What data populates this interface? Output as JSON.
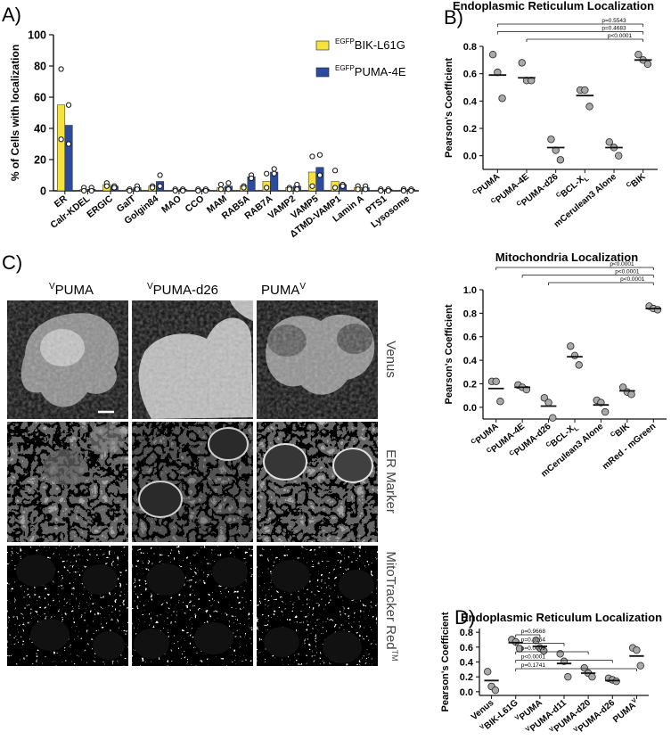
{
  "panel_letters": {
    "a": "A)",
    "b": "B)",
    "c": "C)",
    "d": "D)"
  },
  "chart_data": [
    {
      "id": "A",
      "type": "bar",
      "ylabel": "% of Cells with localization",
      "ylim": [
        0,
        100
      ],
      "yticks": [
        0,
        20,
        40,
        60,
        80,
        100
      ],
      "categories": [
        "ER",
        "Calr-KDEL",
        "ERGIC",
        "GalT",
        "Golgin84",
        "MAO",
        "CCO",
        "MAM",
        "RAB5A",
        "RAB7A",
        "VAMP2",
        "VAMP5",
        "ΔTMD-VAMP1",
        "Lamin A",
        "PTS1",
        "Lysosome"
      ],
      "legend_placement": "top-right",
      "series": [
        {
          "name": "BIK-L61G",
          "name_sup": "EGFP",
          "color": "#f5e23a",
          "values": [
            55,
            1,
            4,
            1,
            3,
            0.5,
            0.5,
            2,
            3,
            6,
            2,
            12,
            6,
            2,
            0.5,
            0.5
          ],
          "points": [
            [
              78,
              33
            ],
            [
              2,
              0
            ],
            [
              5,
              3
            ],
            [
              1,
              0
            ],
            [
              3,
              2
            ],
            [
              1,
              0
            ],
            [
              1,
              0
            ],
            [
              4,
              1
            ],
            [
              3,
              2
            ],
            [
              11,
              2
            ],
            [
              2,
              1
            ],
            [
              22,
              3
            ],
            [
              13,
              2
            ],
            [
              3,
              1
            ],
            [
              1,
              0
            ],
            [
              1,
              0
            ]
          ]
        },
        {
          "name": "PUMA-4E",
          "name_sup": "EGFP",
          "color": "#2c4aa0",
          "values": [
            42,
            1,
            3,
            2,
            6,
            1,
            1,
            3,
            9,
            12,
            3,
            15,
            4,
            2,
            1,
            1
          ],
          "points": [
            [
              55,
              30
            ],
            [
              2,
              0
            ],
            [
              3,
              2
            ],
            [
              3,
              1
            ],
            [
              10,
              3
            ],
            [
              1,
              0
            ],
            [
              1,
              0
            ],
            [
              5,
              1
            ],
            [
              10,
              8
            ],
            [
              14,
              11
            ],
            [
              4,
              1
            ],
            [
              23,
              10
            ],
            [
              4,
              3
            ],
            [
              3,
              1
            ],
            [
              1,
              0
            ],
            [
              1,
              0
            ]
          ]
        }
      ]
    },
    {
      "id": "B",
      "type": "scatter",
      "title": "Endoplasmic Reticulum Localization",
      "ylabel": "Pearson's Coefficient",
      "ylim": [
        -0.1,
        0.8
      ],
      "yticks": [
        0.0,
        0.2,
        0.4,
        0.6,
        0.8
      ],
      "categories": [
        {
          "sup": "C",
          "label": "PUMA"
        },
        {
          "sup": "C",
          "label": "PUMA-4E"
        },
        {
          "sup": "C",
          "label": "PUMA-d26"
        },
        {
          "sup": "C",
          "label": "BCL-X",
          "sub": "L"
        },
        {
          "sup": "",
          "label": "mCerulean3 Alone"
        },
        {
          "sup": "C",
          "label": "BIK"
        }
      ],
      "means": [
        0.59,
        0.57,
        0.06,
        0.44,
        0.06,
        0.7
      ],
      "points": [
        [
          0.74,
          0.61,
          0.42
        ],
        [
          0.68,
          0.55,
          0.55
        ],
        [
          0.12,
          0.04,
          -0.03
        ],
        [
          0.48,
          0.48,
          0.36
        ],
        [
          0.1,
          0.06,
          0.0
        ],
        [
          0.74,
          0.7,
          0.67
        ]
      ],
      "comparisons": [
        {
          "from": 1,
          "to": 5,
          "label": "p<0.0001"
        },
        {
          "from": 0,
          "to": 5,
          "label": "p=0.4683"
        },
        {
          "from": 0,
          "to": 5,
          "label": "p=0.5543"
        }
      ]
    },
    {
      "id": "C",
      "type": "scatter",
      "title": "Mitochondria Localization",
      "ylabel": "Pearson's Coefficient",
      "ylim": [
        -0.1,
        1.0
      ],
      "yticks": [
        0.0,
        0.2,
        0.4,
        0.6,
        0.8,
        1.0
      ],
      "categories": [
        {
          "sup": "C",
          "label": "PUMA"
        },
        {
          "sup": "C",
          "label": "PUMA-4E"
        },
        {
          "sup": "C",
          "label": "PUMA-d26"
        },
        {
          "sup": "C",
          "label": "BCL-X",
          "sub": "L"
        },
        {
          "sup": "",
          "label": "mCerulean3 Alone"
        },
        {
          "sup": "C",
          "label": "BIK"
        },
        {
          "sup": "",
          "label": "mRed - mGreen"
        }
      ],
      "means": [
        0.16,
        0.17,
        0.01,
        0.43,
        0.02,
        0.14,
        0.84
      ],
      "points": [
        [
          0.22,
          0.22,
          0.05
        ],
        [
          0.19,
          0.17,
          0.15
        ],
        [
          0.08,
          0.04,
          -0.09
        ],
        [
          0.52,
          0.44,
          0.36
        ],
        [
          0.06,
          0.04,
          -0.04
        ],
        [
          0.17,
          0.13,
          0.11
        ],
        [
          0.86,
          0.84,
          0.83
        ]
      ],
      "comparisons": [
        {
          "from": 2,
          "to": 6,
          "label": "p<0.0001"
        },
        {
          "from": 1,
          "to": 6,
          "label": "p<0.0001"
        },
        {
          "from": 0,
          "to": 6,
          "label": "p<0.0001"
        }
      ]
    },
    {
      "id": "D",
      "type": "scatter",
      "title": "Endoplasmic Reticulum Localization",
      "ylabel": "Pearson's Coefficient",
      "ylim": [
        -0.05,
        0.85
      ],
      "yticks": [
        0.0,
        0.2,
        0.4,
        0.6,
        0.8
      ],
      "categories": [
        {
          "sup": "",
          "label": "Venus"
        },
        {
          "sup": "V",
          "label": "BIK-L61G"
        },
        {
          "sup": "V",
          "label": "PUMA"
        },
        {
          "sup": "V",
          "label": "PUMA-d11"
        },
        {
          "sup": "V",
          "label": "PUMA-d20"
        },
        {
          "sup": "V",
          "label": "PUMA-d26"
        },
        {
          "sup": "",
          "label": "PUMA",
          "post_sup": "V"
        }
      ],
      "means": [
        0.15,
        0.66,
        0.61,
        0.38,
        0.25,
        0.15,
        0.48
      ],
      "points": [
        [
          0.27,
          0.07,
          0.02
        ],
        [
          0.7,
          0.67,
          0.58
        ],
        [
          0.69,
          0.59,
          0.55
        ],
        [
          0.51,
          0.41,
          0.2
        ],
        [
          0.32,
          0.25,
          0.2
        ],
        [
          0.18,
          0.16,
          0.14
        ],
        [
          0.59,
          0.56,
          0.35
        ]
      ],
      "comparisons": [
        {
          "from": 1,
          "to": 2,
          "label": "p=0.9668"
        },
        {
          "from": 1,
          "to": 3,
          "label": "p=0.0164"
        },
        {
          "from": 1,
          "to": 4,
          "label": "p=0.0009"
        },
        {
          "from": 1,
          "to": 5,
          "label": "p<0.0001"
        },
        {
          "from": 1,
          "to": 6,
          "label": "p=0.1741"
        }
      ]
    }
  ],
  "micrographs": {
    "columns": [
      {
        "sup": "V",
        "label": "PUMA",
        "post_sup": ""
      },
      {
        "sup": "V",
        "label": "PUMA-d26",
        "post_sup": ""
      },
      {
        "sup": "",
        "label": "PUMA",
        "post_sup": "V"
      }
    ],
    "rows": [
      {
        "label": "Venus",
        "sup": ""
      },
      {
        "label": "ER Marker",
        "sup": ""
      },
      {
        "label": "MitoTracker Red",
        "sup": "TM"
      }
    ]
  }
}
